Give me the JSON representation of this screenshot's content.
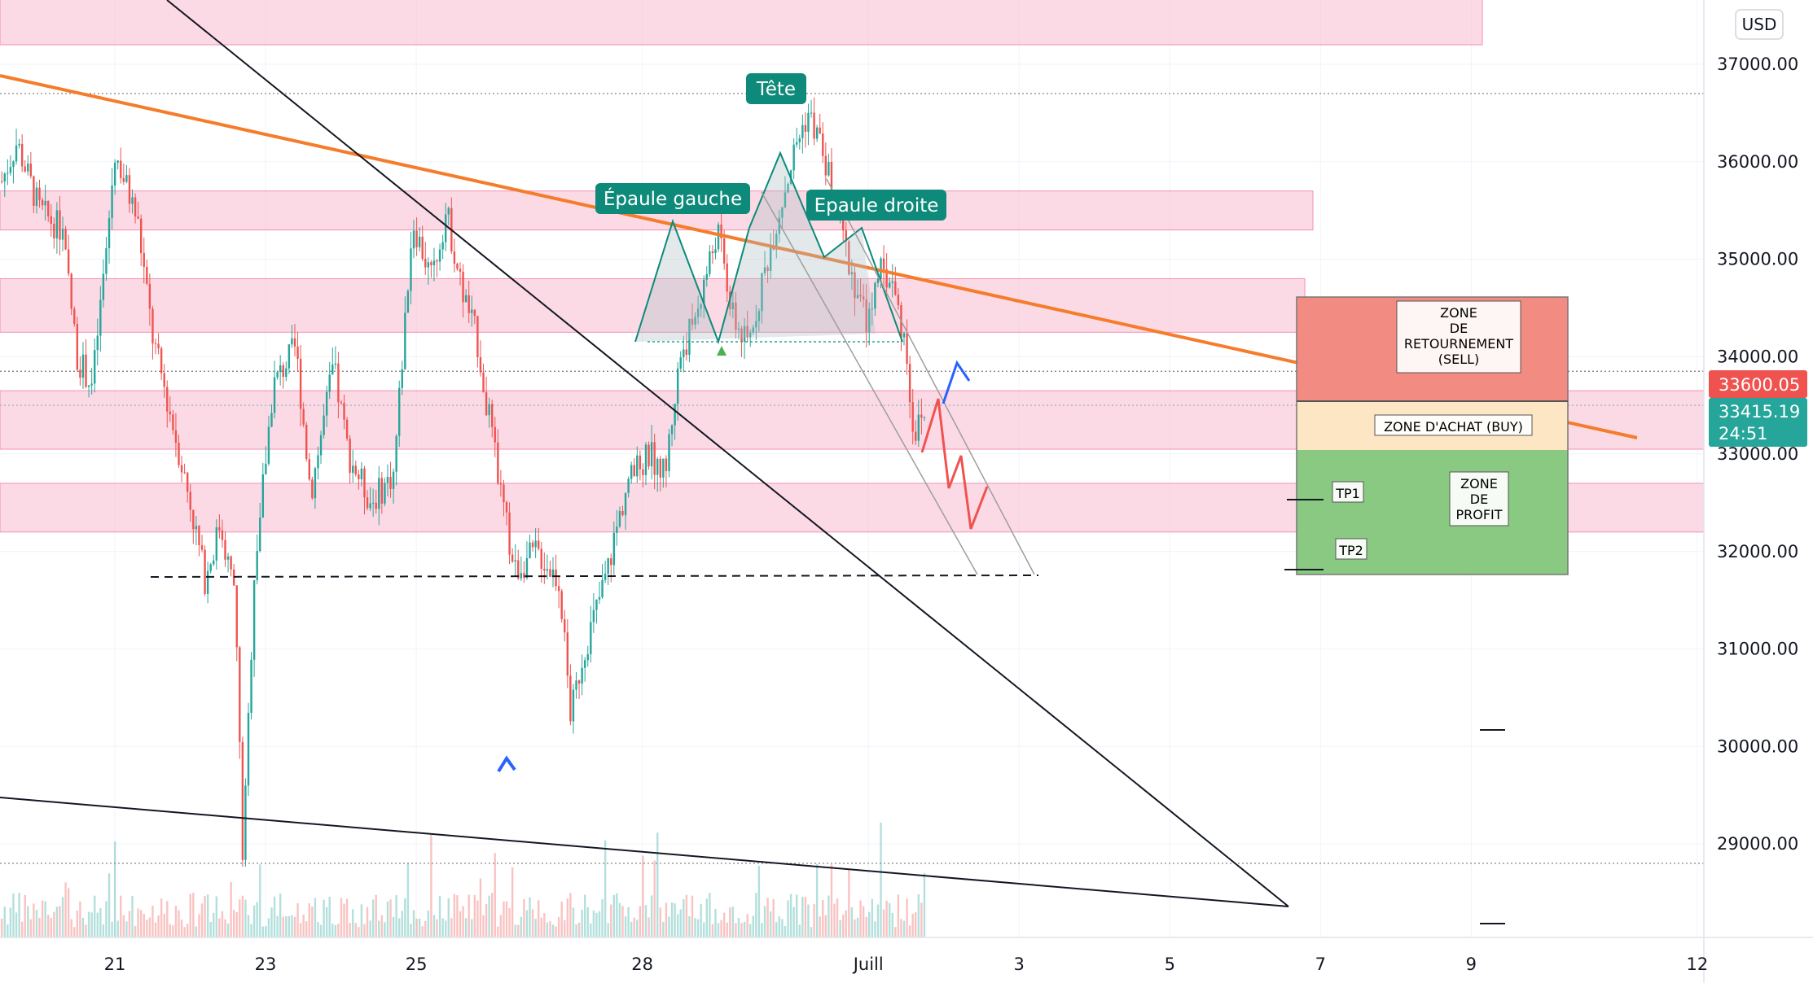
{
  "currency_button": "USD",
  "chart_data": {
    "type": "candlestick",
    "ylim": [
      28200,
      37600
    ],
    "y_ticks": [
      29000,
      30000,
      31000,
      32000,
      33000,
      34000,
      35000,
      36000,
      37000
    ],
    "x_ticks": [
      {
        "label": "21",
        "day": 21
      },
      {
        "label": "23",
        "day": 23
      },
      {
        "label": "25",
        "day": 25
      },
      {
        "label": "28",
        "day": 28
      },
      {
        "label": "Juill",
        "day": 31
      },
      {
        "label": "3",
        "day": 33
      },
      {
        "label": "5",
        "day": 35
      },
      {
        "label": "7",
        "day": 37
      },
      {
        "label": "9",
        "day": 39
      },
      {
        "label": "12",
        "day": 42
      }
    ],
    "price_path": [
      [
        19.5,
        35800
      ],
      [
        19.7,
        36200
      ],
      [
        20.0,
        35500
      ],
      [
        20.3,
        35300
      ],
      [
        20.5,
        34000
      ],
      [
        20.7,
        33700
      ],
      [
        20.9,
        35200
      ],
      [
        21.0,
        36100
      ],
      [
        21.3,
        35400
      ],
      [
        21.5,
        34200
      ],
      [
        21.8,
        33200
      ],
      [
        22.0,
        32500
      ],
      [
        22.2,
        31700
      ],
      [
        22.4,
        32300
      ],
      [
        22.6,
        31500
      ],
      [
        22.7,
        28800
      ],
      [
        22.85,
        31800
      ],
      [
        23.1,
        33700
      ],
      [
        23.4,
        34100
      ],
      [
        23.6,
        32600
      ],
      [
        23.9,
        33900
      ],
      [
        24.1,
        33000
      ],
      [
        24.4,
        32500
      ],
      [
        24.7,
        32800
      ],
      [
        24.95,
        35400
      ],
      [
        25.2,
        34800
      ],
      [
        25.4,
        35500
      ],
      [
        25.6,
        34700
      ],
      [
        25.8,
        34200
      ],
      [
        26.1,
        32700
      ],
      [
        26.3,
        31800
      ],
      [
        26.6,
        32000
      ],
      [
        26.9,
        31700
      ],
      [
        27.05,
        30300
      ],
      [
        27.2,
        30900
      ],
      [
        27.5,
        31700
      ],
      [
        27.8,
        32700
      ],
      [
        28.1,
        33000
      ],
      [
        28.3,
        32800
      ],
      [
        28.5,
        34000
      ],
      [
        28.7,
        34400
      ],
      [
        29.0,
        35300
      ],
      [
        29.2,
        34400
      ],
      [
        29.4,
        34100
      ],
      [
        29.6,
        34800
      ],
      [
        29.85,
        35600
      ],
      [
        30.05,
        36200
      ],
      [
        30.2,
        36500
      ],
      [
        30.4,
        36100
      ],
      [
        30.6,
        35400
      ],
      [
        30.8,
        34800
      ],
      [
        31.0,
        34300
      ],
      [
        31.1,
        34900
      ],
      [
        31.3,
        34800
      ],
      [
        31.5,
        34100
      ],
      [
        31.6,
        33200
      ],
      [
        31.75,
        33400
      ]
    ],
    "volume_ylim": [
      0,
      160
    ],
    "current_price": "33600.05",
    "last_price": "33415.19",
    "countdown": "24:51",
    "pattern_labels": {
      "head": "Tête",
      "left_shoulder": "Épaule gauche",
      "right_shoulder": "Epaule droite"
    },
    "zones": {
      "sell": [
        "ZONE",
        "DE",
        "RETOURNEMENT",
        "(SELL)"
      ],
      "buy": "ZONE D'ACHAT (BUY)",
      "profit": [
        "ZONE",
        "DE",
        "PROFIT"
      ],
      "tp1": "TP1",
      "tp2": "TP2"
    },
    "resistance_bands": [
      [
        37200,
        37700
      ],
      [
        35300,
        35700
      ],
      [
        34250,
        34800
      ],
      [
        33050,
        33650
      ],
      [
        32200,
        32700
      ]
    ],
    "colors": {
      "up": "#26a69a",
      "down": "#ef5350",
      "band": "#f8bbd0",
      "trendline": "#f57c2a",
      "sell_zone": "#f28b82",
      "buy_zone": "#fde6c3",
      "profit_zone": "#89c982",
      "price_tag": "#ef5350",
      "last_tag": "#26a69a",
      "pattern_label": "#0d8a7a"
    }
  }
}
